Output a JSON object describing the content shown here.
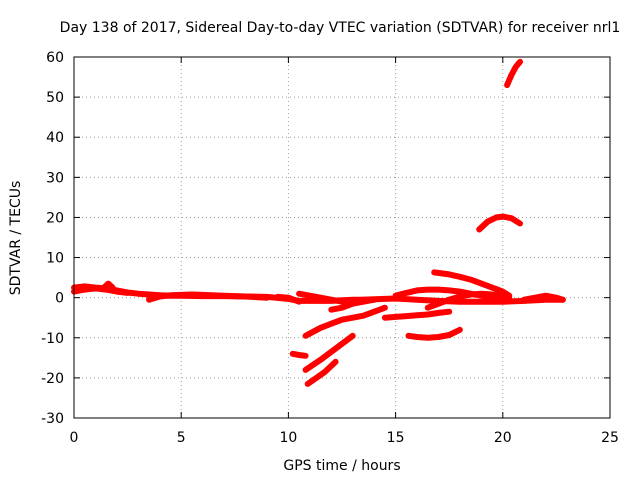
{
  "chart_data": {
    "type": "line",
    "title": "Day 138 of 2017, Sidereal Day-to-day VTEC variation (SDTVAR) for receiver nrl1",
    "xlabel": "GPS time / hours",
    "ylabel": "SDTVAR / TECUs",
    "xlim": [
      0,
      25
    ],
    "ylim": [
      -30,
      60
    ],
    "xticks": [
      0,
      5,
      10,
      15,
      20,
      25
    ],
    "yticks": [
      -30,
      -20,
      -10,
      0,
      10,
      20,
      30,
      40,
      50,
      60
    ],
    "xtick_labels": [
      "0",
      "5",
      "10",
      "15",
      "20",
      "25"
    ],
    "ytick_labels": [
      "-30",
      "-20",
      "-10",
      "0",
      "10",
      "20",
      "30",
      "40",
      "50",
      "60"
    ],
    "grid": true,
    "line_color": "#ff0000",
    "series": [
      {
        "name": "s1",
        "x": [
          0.0,
          0.5,
          1.0,
          1.5,
          2.0,
          2.5,
          3.0,
          3.5,
          4.0,
          4.5,
          5.0,
          6.0,
          7.0,
          8.0,
          9.0,
          10.0,
          10.5,
          11.0,
          12.0,
          13.0,
          14.0
        ],
        "y": [
          2.5,
          2.8,
          2.5,
          2.3,
          1.8,
          1.3,
          1.0,
          0.8,
          0.6,
          0.5,
          0.5,
          0.4,
          0.4,
          0.3,
          0.2,
          -0.3,
          -0.8,
          -0.8,
          -0.8,
          -0.5,
          -0.5
        ]
      },
      {
        "name": "s2",
        "x": [
          0.0,
          0.5,
          1.0,
          1.5,
          2.0,
          2.5
        ],
        "y": [
          1.5,
          2.0,
          2.3,
          2.0,
          1.5,
          1.2
        ]
      },
      {
        "name": "s3",
        "x": [
          1.4,
          1.6,
          1.8
        ],
        "y": [
          2.5,
          3.5,
          2.5
        ]
      },
      {
        "name": "s4",
        "x": [
          3.5,
          4.0,
          4.5,
          5.0,
          5.5,
          6.0,
          7.0,
          8.0,
          9.0
        ],
        "y": [
          -0.5,
          0.3,
          0.6,
          0.7,
          0.8,
          0.7,
          0.5,
          0.3,
          0.0
        ]
      },
      {
        "name": "s5",
        "x": [
          9.5,
          10.0,
          10.5
        ],
        "y": [
          0.2,
          0.0,
          -1.0
        ]
      },
      {
        "name": "s6",
        "x": [
          10.5,
          11.0,
          11.5,
          12.0,
          12.5,
          13.0,
          13.5,
          14.0,
          14.5,
          15.0,
          16.0,
          17.0,
          18.0,
          19.0,
          20.0,
          21.0,
          22.0,
          22.8
        ],
        "y": [
          1.0,
          0.5,
          0.0,
          -0.5,
          -1.0,
          -0.8,
          -0.5,
          -0.4,
          -0.3,
          -0.2,
          -0.5,
          -0.8,
          -1.0,
          -1.0,
          -1.0,
          -0.8,
          -0.5,
          -0.5
        ]
      },
      {
        "name": "s7",
        "x": [
          21.0,
          21.5,
          22.0,
          22.5,
          22.8
        ],
        "y": [
          -0.5,
          0.0,
          0.5,
          0.0,
          -0.5
        ]
      },
      {
        "name": "s8",
        "x": [
          12.0,
          12.5,
          13.0,
          13.5,
          14.0
        ],
        "y": [
          -3.0,
          -2.5,
          -1.5,
          -1.0,
          -0.5
        ]
      },
      {
        "name": "s9",
        "x": [
          10.8,
          11.5,
          12.0,
          12.5,
          13.0,
          13.5,
          14.0,
          14.5
        ],
        "y": [
          -9.5,
          -7.5,
          -6.5,
          -5.5,
          -5.0,
          -4.5,
          -3.5,
          -2.5
        ]
      },
      {
        "name": "s10",
        "x": [
          14.5,
          15.0,
          15.5,
          16.0,
          16.5,
          17.0,
          17.5
        ],
        "y": [
          -5.0,
          -4.8,
          -4.6,
          -4.4,
          -4.2,
          -3.8,
          -3.5
        ]
      },
      {
        "name": "s11",
        "x": [
          15.0,
          15.5,
          16.0,
          16.5,
          17.0,
          17.5,
          18.0,
          18.5,
          19.0,
          19.5,
          20.0
        ],
        "y": [
          0.5,
          1.2,
          1.8,
          2.0,
          2.0,
          1.8,
          1.5,
          1.0,
          0.5,
          0.0,
          -0.5
        ]
      },
      {
        "name": "s12",
        "x": [
          16.5,
          17.0,
          17.5,
          18.0,
          18.5,
          19.0,
          19.5,
          20.0,
          20.3
        ],
        "y": [
          -2.5,
          -1.5,
          -0.5,
          0.3,
          0.8,
          1.0,
          0.8,
          0.3,
          0.0
        ]
      },
      {
        "name": "s13",
        "x": [
          16.8,
          17.5,
          18.0,
          18.5,
          19.0,
          19.5,
          20.0,
          20.3
        ],
        "y": [
          6.3,
          5.8,
          5.2,
          4.5,
          3.5,
          2.5,
          1.5,
          0.5
        ]
      },
      {
        "name": "s14",
        "x": [
          15.6,
          16.0,
          16.5,
          17.0,
          17.5,
          18.0
        ],
        "y": [
          -9.5,
          -9.8,
          -10.0,
          -9.8,
          -9.3,
          -8.0
        ]
      },
      {
        "name": "s15",
        "x": [
          10.2,
          10.5,
          10.8
        ],
        "y": [
          -14.0,
          -14.3,
          -14.5
        ]
      },
      {
        "name": "s16",
        "x": [
          10.8,
          11.5,
          12.0,
          12.5,
          13.0
        ],
        "y": [
          -18.0,
          -15.5,
          -13.5,
          -11.5,
          -9.5
        ]
      },
      {
        "name": "s17",
        "x": [
          10.9,
          11.3,
          11.7,
          12.2
        ],
        "y": [
          -21.5,
          -20.0,
          -18.5,
          -16.0
        ]
      },
      {
        "name": "s18",
        "x": [
          18.9,
          19.3,
          19.7,
          20.0,
          20.4,
          20.8
        ],
        "y": [
          17.0,
          19.0,
          20.0,
          20.2,
          19.8,
          18.5
        ]
      },
      {
        "name": "s19",
        "x": [
          20.2,
          20.4,
          20.6,
          20.8
        ],
        "y": [
          53.0,
          55.5,
          57.5,
          58.8
        ]
      }
    ]
  }
}
